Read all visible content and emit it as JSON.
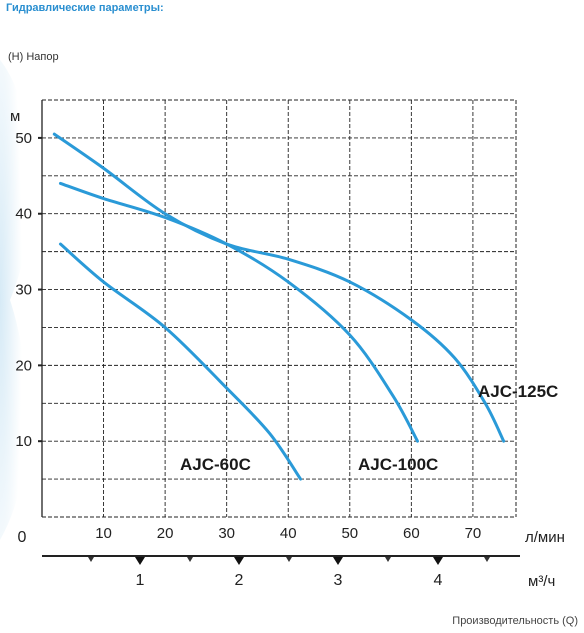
{
  "page": {
    "section_title": "Гидравлические параметры:",
    "y_caption": "(H) Напор",
    "footer_caption": "Производительность (Q)"
  },
  "chart_data": {
    "type": "line",
    "ylabel": "м",
    "xlabel": "л/мин",
    "secondary_xlabel": "м³/ч",
    "origin_label": "0",
    "xlim": [
      0,
      77
    ],
    "ylim": [
      0,
      55
    ],
    "x_ticks": [
      "10",
      "20",
      "30",
      "40",
      "50",
      "60",
      "70"
    ],
    "y_ticks": [
      "10",
      "20",
      "30",
      "40",
      "50"
    ],
    "secondary_x_ticks": [
      "1",
      "2",
      "3",
      "4"
    ],
    "grid": true,
    "colors": {
      "series": "#2a9ad8",
      "grid": "#222222"
    },
    "series": [
      {
        "name": "AJC-60C",
        "x": [
          3,
          10,
          20,
          30,
          37,
          42
        ],
        "y": [
          36,
          31,
          25,
          17,
          11,
          5
        ]
      },
      {
        "name": "AJC-100C",
        "x": [
          3,
          10,
          20,
          30,
          40,
          50,
          57,
          61
        ],
        "y": [
          44,
          42,
          39.5,
          36,
          31,
          24,
          16,
          10
        ]
      },
      {
        "name": "AJC-125C",
        "x": [
          2,
          10,
          20,
          30,
          40,
          50,
          60,
          67,
          72,
          75
        ],
        "y": [
          50.5,
          46,
          40,
          36,
          34,
          31,
          26,
          21,
          15,
          10
        ]
      }
    ]
  }
}
